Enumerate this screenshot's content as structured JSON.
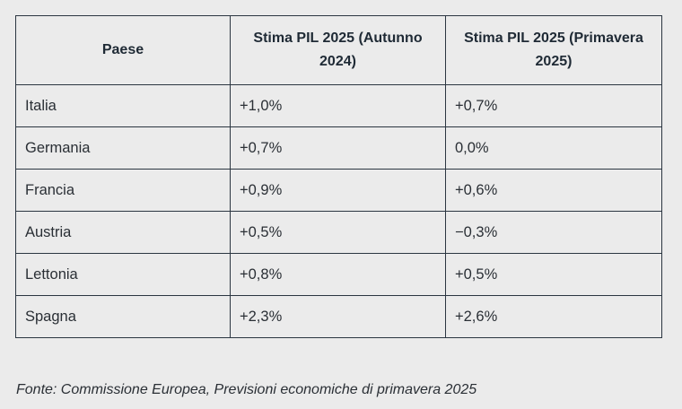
{
  "table": {
    "headers": [
      "Paese",
      "Stima PIL 2025 (Autunno 2024)",
      "Stima PIL 2025 (Primavera 2025)"
    ],
    "rows": [
      [
        "Italia",
        "+1,0%",
        "+0,7%"
      ],
      [
        "Germania",
        "+0,7%",
        "0,0%"
      ],
      [
        "Francia",
        "+0,9%",
        "+0,6%"
      ],
      [
        "Austria",
        "+0,5%",
        "−0,3%"
      ],
      [
        "Lettonia",
        "+0,8%",
        "+0,5%"
      ],
      [
        "Spagna",
        "+2,3%",
        "+2,6%"
      ]
    ]
  },
  "source": "Fonte: Commissione Europea, Previsioni economiche di primavera 2025"
}
